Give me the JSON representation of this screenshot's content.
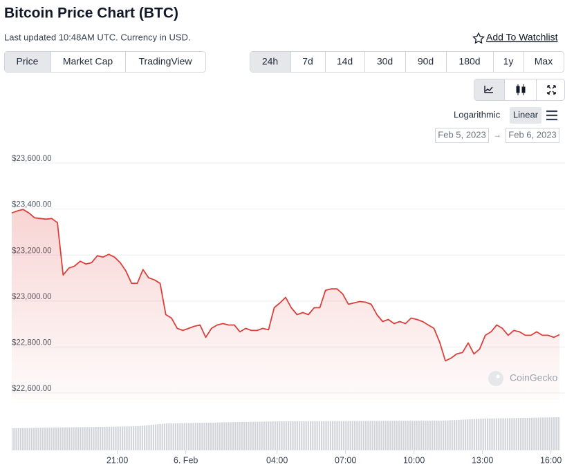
{
  "header": {
    "title": "Bitcoin Price Chart (BTC)",
    "subtitle": "Last updated 10:48AM UTC. Currency in USD.",
    "watchlist": "Add To Watchlist"
  },
  "tabs": [
    "Price",
    "Market Cap",
    "TradingView"
  ],
  "ranges": [
    "24h",
    "7d",
    "14d",
    "30d",
    "90d",
    "180d",
    "1y",
    "Max"
  ],
  "scale_options": [
    "Logarithmic",
    "Linear"
  ],
  "date_from": "Feb 5, 2023",
  "date_to": "Feb 6, 2023",
  "watermark": "CoinGecko",
  "chart_data": {
    "type": "line",
    "color": "#dc3f3a",
    "values": [
      23383,
      23392,
      23398,
      23383,
      23362,
      23359,
      23356,
      23359,
      23341,
      23113,
      23143,
      23152,
      23173,
      23161,
      23167,
      23197,
      23191,
      23203,
      23191,
      23167,
      23131,
      23077,
      23077,
      23137,
      23101,
      23092,
      23077,
      22941,
      22926,
      22881,
      22872,
      22881,
      22890,
      22896,
      22842,
      22881,
      22896,
      22902,
      22896,
      22896,
      22866,
      22881,
      22872,
      22872,
      22881,
      22875,
      22971,
      22992,
      23016,
      22971,
      22941,
      22950,
      22941,
      22971,
      22971,
      23047,
      23053,
      23053,
      23031,
      22986,
      22992,
      22998,
      22995,
      22986,
      22941,
      22911,
      22920,
      22902,
      22911,
      22902,
      22926,
      22920,
      22911,
      22896,
      22881,
      22821,
      22740,
      22752,
      22770,
      22776,
      22818,
      22770,
      22791,
      22851,
      22866,
      22896,
      22881,
      22851,
      22872,
      22866,
      22851,
      22851,
      22866,
      22851,
      22851,
      22842,
      22854
    ],
    "xlim": [
      0,
      96
    ],
    "xticks": [
      {
        "value": 18.5,
        "label": "21:00"
      },
      {
        "value": 30.5,
        "label": "6. Feb"
      },
      {
        "value": 46.5,
        "label": "04:00"
      },
      {
        "value": 58.5,
        "label": "07:00"
      },
      {
        "value": 70.5,
        "label": "10:00"
      },
      {
        "value": 82.5,
        "label": "13:00"
      },
      {
        "value": 94.5,
        "label": "16:00"
      }
    ],
    "ylim": [
      22570,
      23680
    ],
    "yticks": [
      {
        "value": 23600,
        "label": "$23,600.00"
      },
      {
        "value": 23400,
        "label": "$23,400.00"
      },
      {
        "value": 23200,
        "label": "$23,200.00"
      },
      {
        "value": 23000,
        "label": "$23,000.00"
      },
      {
        "value": 22800,
        "label": "$22,800.00"
      },
      {
        "value": 22600,
        "label": "$22,600.00"
      }
    ],
    "grid": true
  }
}
